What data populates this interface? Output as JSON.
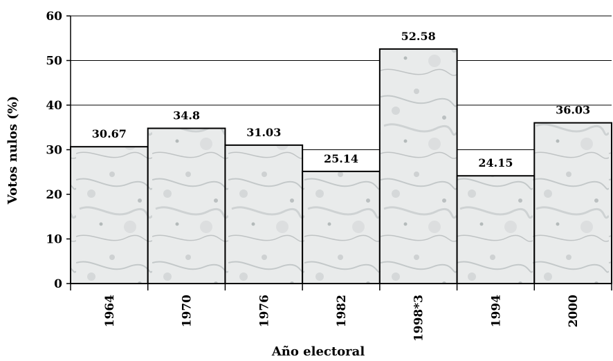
{
  "chart_data": {
    "type": "bar",
    "title": "",
    "xlabel": "Año electoral",
    "ylabel": "Votos nulos (%)",
    "ylim": [
      0,
      60
    ],
    "yticks": [
      0,
      10,
      20,
      30,
      40,
      50,
      60
    ],
    "grid": true,
    "categories": [
      "1964",
      "1970",
      "1976",
      "1982",
      "1998*3",
      "1994",
      "2000"
    ],
    "values": [
      30.67,
      34.8,
      31.03,
      25.14,
      52.58,
      24.15,
      36.03
    ],
    "data_labels": [
      "30.67",
      "34.8",
      "31.03",
      "25.14",
      "52.58",
      "24.15",
      "36.03"
    ],
    "bar_fill": "#e6e8e8",
    "bar_texture": "marble"
  }
}
